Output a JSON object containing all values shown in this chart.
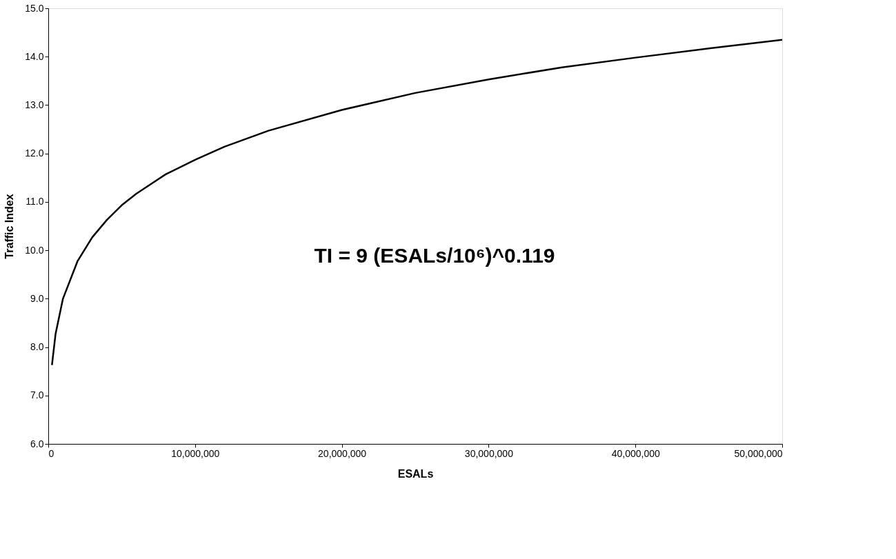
{
  "chart_data": {
    "type": "line",
    "xlabel": "ESALs",
    "ylabel": "Traffic Index",
    "x": [
      250000,
      500000,
      1000000,
      2000000,
      3000000,
      4000000,
      5000000,
      6000000,
      8000000,
      10000000,
      12000000,
      15000000,
      20000000,
      25000000,
      30000000,
      35000000,
      40000000,
      45000000,
      50000000
    ],
    "series": [
      {
        "color": "#000000",
        "values": [
          7.63,
          8.28,
          9.0,
          9.78,
          10.27,
          10.63,
          10.93,
          11.17,
          11.57,
          11.87,
          12.14,
          12.47,
          12.9,
          13.25,
          13.53,
          13.78,
          13.98,
          14.17,
          14.35
        ]
      }
    ],
    "xlim": [
      0,
      50000000
    ],
    "xticks": [
      {
        "value": 0,
        "label": "0"
      },
      {
        "value": 10000000,
        "label": "10,000,000"
      },
      {
        "value": 20000000,
        "label": "20,000,000"
      },
      {
        "value": 30000000,
        "label": "30,000,000"
      },
      {
        "value": 40000000,
        "label": "40,000,000"
      },
      {
        "value": 50000000,
        "label": "50,000,000"
      }
    ],
    "ylim": [
      6,
      15
    ],
    "yticks": [
      {
        "value": 6,
        "label": "6.0"
      },
      {
        "value": 7,
        "label": "7.0"
      },
      {
        "value": 8,
        "label": "8.0"
      },
      {
        "value": 9,
        "label": "9.0"
      },
      {
        "value": 10,
        "label": "10.0"
      },
      {
        "value": 11,
        "label": "11.0"
      },
      {
        "value": 12,
        "label": "12.0"
      },
      {
        "value": 13,
        "label": "13.0"
      },
      {
        "value": 14,
        "label": "14.0"
      },
      {
        "value": 15,
        "label": "15.0"
      }
    ],
    "annotations": [
      "TI = 9 (ESALs/10⁶)^0.119"
    ],
    "grid": false,
    "marker": "none",
    "line_style": "solid"
  }
}
